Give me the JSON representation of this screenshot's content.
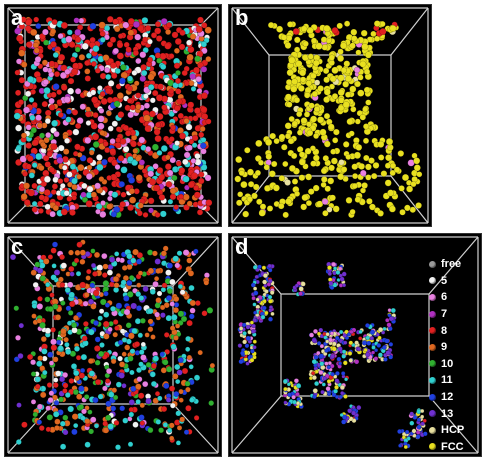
{
  "panels": [
    {
      "label": "a"
    },
    {
      "label": "b"
    },
    {
      "label": "c"
    },
    {
      "label": "d"
    }
  ],
  "legend": [
    {
      "label": "free",
      "color": "#9a9a9a"
    },
    {
      "label": "5",
      "color": "#f2f2f2"
    },
    {
      "label": "6",
      "color": "#e880e0"
    },
    {
      "label": "7",
      "color": "#b030c0"
    },
    {
      "label": "8",
      "color": "#e02020"
    },
    {
      "label": "9",
      "color": "#e06820"
    },
    {
      "label": "10",
      "color": "#30b030"
    },
    {
      "label": "11",
      "color": "#30d0d0"
    },
    {
      "label": "12",
      "color": "#2040e0"
    },
    {
      "label": "13",
      "color": "#7030d0"
    },
    {
      "label": "HCP",
      "color": "#e8e0a0"
    },
    {
      "label": "FCC",
      "color": "#e8e020"
    }
  ]
}
